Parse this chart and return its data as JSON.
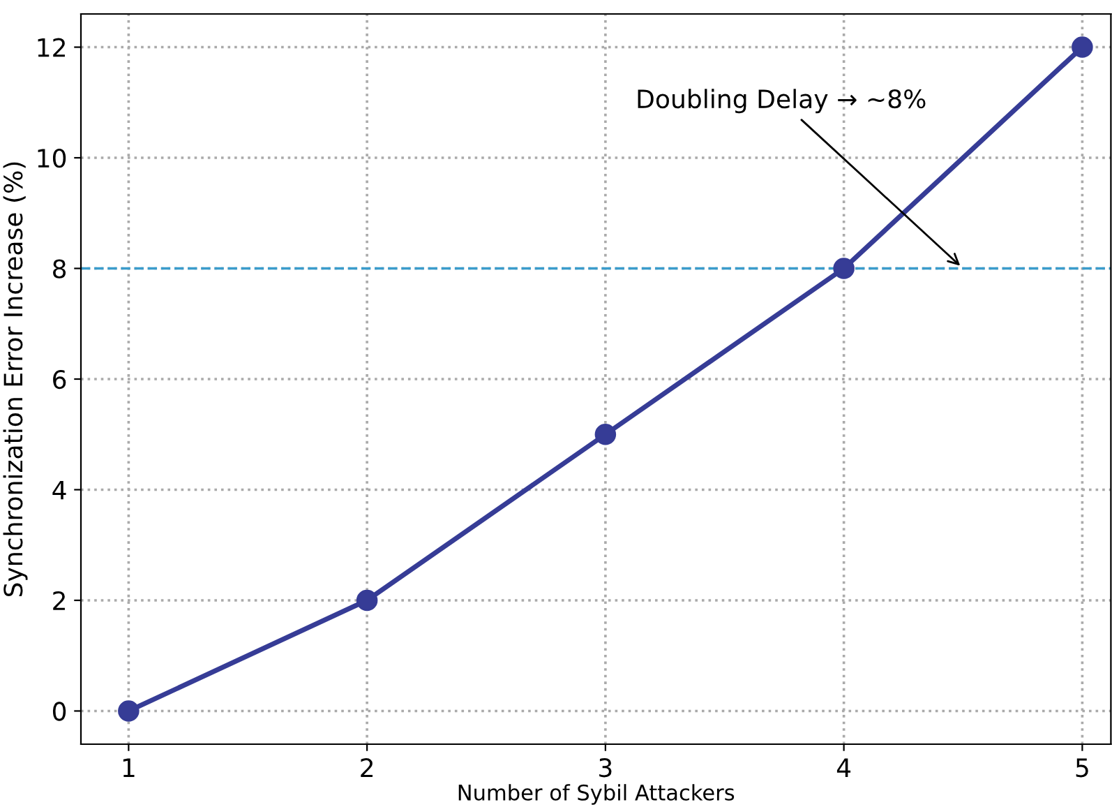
{
  "chart_data": {
    "type": "line",
    "xlabel": "Number of Sybil Attackers",
    "ylabel": "Synchronization Error Increase (%)",
    "x": [
      1,
      2,
      3,
      4,
      5
    ],
    "series": [
      {
        "color": "#363c96",
        "values": [
          0,
          2,
          5,
          8,
          12
        ]
      }
    ],
    "xlim": [
      0.8,
      5.12
    ],
    "ylim": [
      -0.6,
      12.6
    ],
    "xticks": [
      1,
      2,
      3,
      4,
      5
    ],
    "yticks": [
      0,
      2,
      4,
      6,
      8,
      10,
      12
    ],
    "ref_lines": [
      {
        "axis": "y",
        "value": 8,
        "color": "#3a9ccc",
        "line_style": "dashed"
      }
    ],
    "annotations": [
      {
        "text": "Doubling Delay → ~8%",
        "x": 4.5,
        "y": 8
      }
    ],
    "grid": true,
    "marker": "circle",
    "line_style": "solid"
  }
}
